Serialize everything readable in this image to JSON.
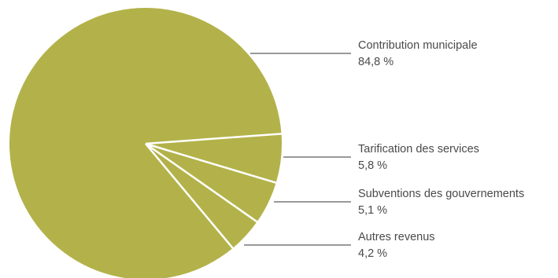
{
  "chart_data": {
    "type": "pie",
    "slice_color": "#b3b24a",
    "separator_color": "#ffffff",
    "leader_color": "#333333",
    "text_color": "#4a4a4a",
    "slices": [
      {
        "label": "Contribution municipale",
        "value": 84.8,
        "value_label": "84,8 %"
      },
      {
        "label": "Tarification des services",
        "value": 5.8,
        "value_label": "5,8 %"
      },
      {
        "label": "Subventions des gouvernements",
        "value": 5.1,
        "value_label": "5,1 %"
      },
      {
        "label": "Autres revenus",
        "value": 4.2,
        "value_label": "4,2 %"
      }
    ]
  }
}
